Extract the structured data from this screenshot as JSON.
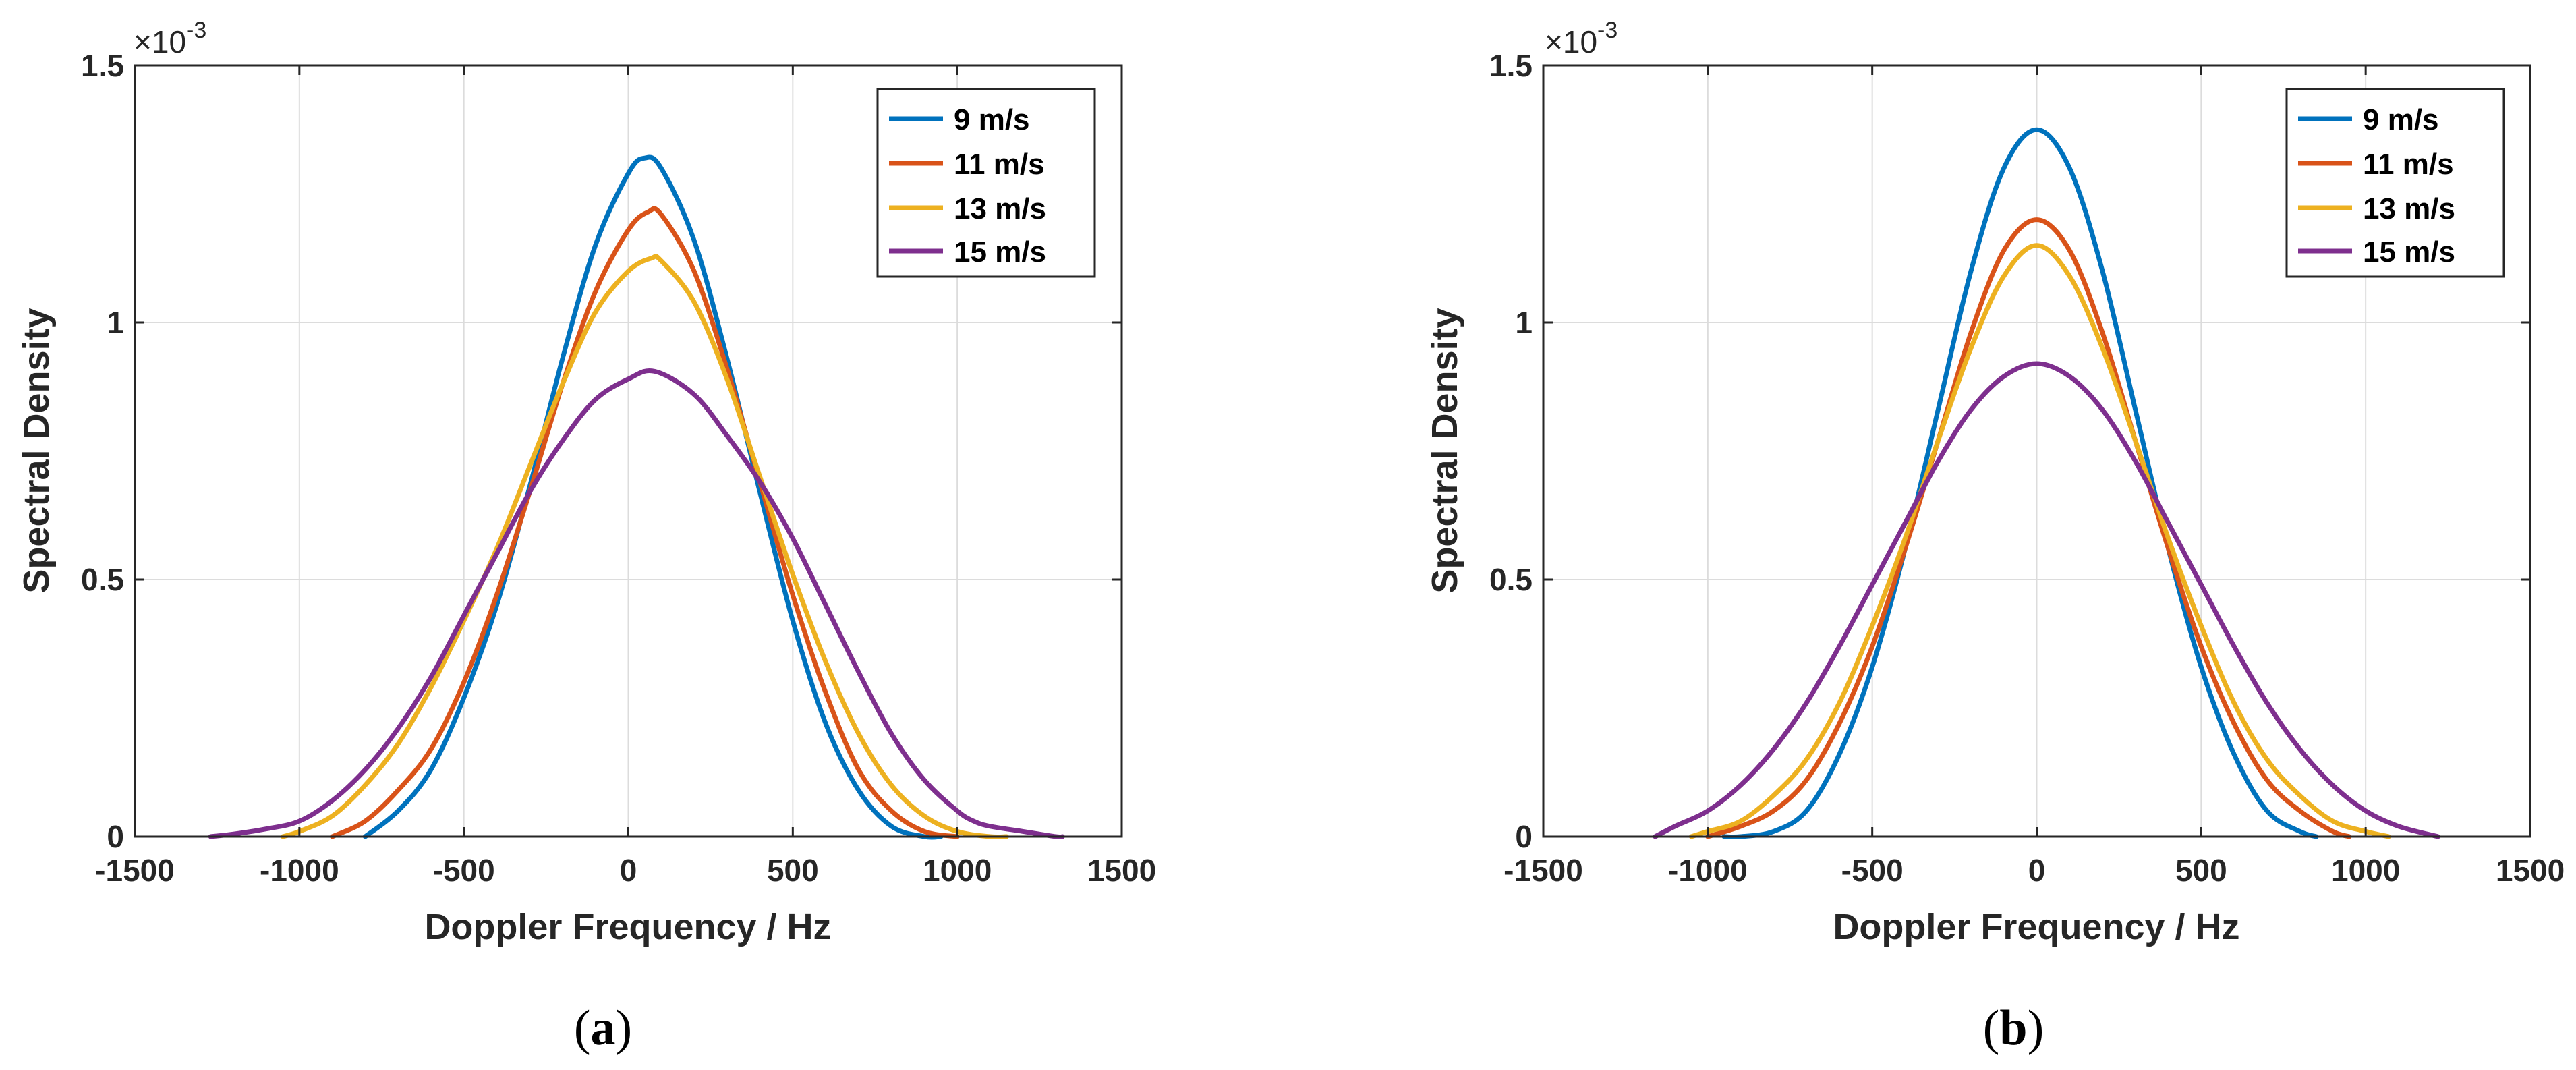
{
  "chart_data": [
    {
      "type": "line",
      "caption_open": "(",
      "caption_letter": "a",
      "caption_close": ")",
      "title": "",
      "xlabel": "Doppler Frequency / Hz",
      "ylabel": "Spectral Density",
      "y_exponent_base": "×10",
      "y_exponent_power": "-3",
      "xlim": [
        -1500,
        1500
      ],
      "ylim": [
        0,
        1.5
      ],
      "xticks": [
        "-1500",
        "-1000",
        "-500",
        "0",
        "500",
        "1000",
        "1500"
      ],
      "yticks": [
        "0",
        "0.5",
        "1",
        "1.5"
      ],
      "grid": true,
      "legend_position": "top-right",
      "series": [
        {
          "name": "9 m/s",
          "color": "#0072BD",
          "x": [
            -800,
            -700,
            -600,
            -500,
            -400,
            -300,
            -200,
            -100,
            0,
            50,
            100,
            200,
            300,
            400,
            500,
            600,
            700,
            800,
            900,
            950
          ],
          "values": [
            0.0,
            0.05,
            0.13,
            0.27,
            0.45,
            0.68,
            0.93,
            1.15,
            1.29,
            1.32,
            1.3,
            1.16,
            0.93,
            0.67,
            0.42,
            0.22,
            0.09,
            0.02,
            0.0,
            0.0
          ]
        },
        {
          "name": "11 m/s",
          "color": "#D95319",
          "x": [
            -900,
            -800,
            -700,
            -600,
            -500,
            -400,
            -300,
            -200,
            -100,
            0,
            60,
            100,
            200,
            300,
            400,
            500,
            600,
            700,
            800,
            900,
            1000
          ],
          "values": [
            0.0,
            0.03,
            0.09,
            0.17,
            0.3,
            0.47,
            0.67,
            0.88,
            1.06,
            1.18,
            1.215,
            1.21,
            1.1,
            0.91,
            0.69,
            0.47,
            0.28,
            0.13,
            0.05,
            0.01,
            0.0
          ]
        },
        {
          "name": "13 m/s",
          "color": "#EDB120",
          "x": [
            -1050,
            -1000,
            -900,
            -800,
            -700,
            -600,
            -500,
            -400,
            -300,
            -200,
            -100,
            0,
            70,
            100,
            200,
            300,
            400,
            500,
            600,
            700,
            800,
            900,
            1000,
            1100,
            1150
          ],
          "values": [
            0.0,
            0.01,
            0.04,
            0.1,
            0.18,
            0.29,
            0.42,
            0.56,
            0.72,
            0.88,
            1.02,
            1.1,
            1.125,
            1.12,
            1.04,
            0.89,
            0.7,
            0.51,
            0.34,
            0.2,
            0.1,
            0.04,
            0.01,
            0.0,
            0.0
          ]
        },
        {
          "name": "15 m/s",
          "color": "#7E2F8E",
          "x": [
            -1270,
            -1200,
            -1100,
            -1000,
            -900,
            -800,
            -700,
            -600,
            -500,
            -400,
            -300,
            -200,
            -100,
            0,
            80,
            200,
            300,
            400,
            500,
            600,
            700,
            800,
            900,
            1000,
            1050,
            1100,
            1200,
            1300,
            1320
          ],
          "values": [
            0.0,
            0.005,
            0.015,
            0.03,
            0.07,
            0.13,
            0.21,
            0.31,
            0.43,
            0.55,
            0.67,
            0.77,
            0.85,
            0.89,
            0.905,
            0.86,
            0.78,
            0.69,
            0.58,
            0.45,
            0.32,
            0.2,
            0.11,
            0.05,
            0.03,
            0.02,
            0.01,
            0.0,
            0.0
          ]
        }
      ]
    },
    {
      "type": "line",
      "caption_open": "(",
      "caption_letter": "b",
      "caption_close": ")",
      "title": "",
      "xlabel": "Doppler Frequency / Hz",
      "ylabel": "Spectral Density",
      "y_exponent_base": "×10",
      "y_exponent_power": "-3",
      "xlim": [
        -1500,
        1500
      ],
      "ylim": [
        0,
        1.5
      ],
      "xticks": [
        "-1500",
        "-1000",
        "-500",
        "0",
        "500",
        "1000",
        "1500"
      ],
      "yticks": [
        "0",
        "0.5",
        "1",
        "1.5"
      ],
      "grid": true,
      "legend_position": "top-right",
      "series": [
        {
          "name": "9 m/s",
          "color": "#0072BD",
          "x": [
            -950,
            -900,
            -800,
            -700,
            -600,
            -500,
            -400,
            -300,
            -200,
            -100,
            0,
            100,
            200,
            300,
            400,
            500,
            600,
            700,
            800,
            850
          ],
          "values": [
            0.0,
            0.0,
            0.01,
            0.05,
            0.16,
            0.33,
            0.56,
            0.83,
            1.1,
            1.3,
            1.375,
            1.3,
            1.1,
            0.83,
            0.56,
            0.33,
            0.16,
            0.05,
            0.01,
            0.0
          ]
        },
        {
          "name": "11 m/s",
          "color": "#D95319",
          "x": [
            -1000,
            -900,
            -800,
            -700,
            -600,
            -500,
            -400,
            -300,
            -200,
            -100,
            0,
            100,
            200,
            300,
            400,
            500,
            600,
            700,
            800,
            900,
            950
          ],
          "values": [
            0.0,
            0.02,
            0.05,
            0.11,
            0.22,
            0.37,
            0.56,
            0.77,
            0.98,
            1.14,
            1.2,
            1.14,
            0.98,
            0.77,
            0.56,
            0.37,
            0.22,
            0.11,
            0.05,
            0.01,
            0.0
          ]
        },
        {
          "name": "13 m/s",
          "color": "#EDB120",
          "x": [
            -1050,
            -1000,
            -900,
            -800,
            -700,
            -600,
            -500,
            -400,
            -300,
            -200,
            -100,
            0,
            100,
            200,
            300,
            400,
            500,
            600,
            700,
            800,
            900,
            1000,
            1070
          ],
          "values": [
            0.0,
            0.01,
            0.03,
            0.08,
            0.15,
            0.26,
            0.41,
            0.58,
            0.77,
            0.95,
            1.09,
            1.15,
            1.09,
            0.95,
            0.77,
            0.58,
            0.41,
            0.26,
            0.15,
            0.08,
            0.03,
            0.01,
            0.0
          ]
        },
        {
          "name": "15 m/s",
          "color": "#7E2F8E",
          "x": [
            -1160,
            -1100,
            -1000,
            -900,
            -800,
            -700,
            -600,
            -500,
            -400,
            -300,
            -200,
            -100,
            0,
            100,
            200,
            300,
            400,
            500,
            600,
            700,
            800,
            900,
            1000,
            1100,
            1220
          ],
          "values": [
            0.0,
            0.02,
            0.05,
            0.1,
            0.17,
            0.26,
            0.37,
            0.49,
            0.61,
            0.73,
            0.83,
            0.895,
            0.92,
            0.895,
            0.83,
            0.73,
            0.61,
            0.49,
            0.37,
            0.26,
            0.17,
            0.1,
            0.05,
            0.02,
            0.0
          ]
        }
      ]
    }
  ]
}
